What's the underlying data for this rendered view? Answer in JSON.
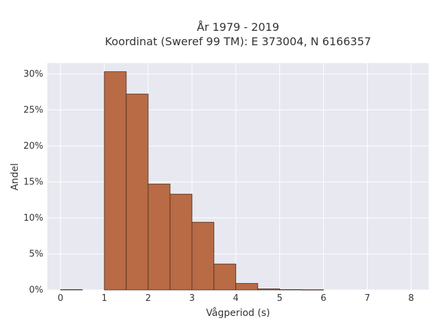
{
  "chart_data": {
    "type": "bar",
    "title_line1": "År 1979 - 2019",
    "title_line2": "Koordinat (Sweref 99 TM): E 373004, N 6166357",
    "xlabel": "Vågperiod (s)",
    "ylabel": "Andel",
    "xlim": [
      -0.3,
      8.4
    ],
    "ylim": [
      0,
      31.5
    ],
    "x_ticks": [
      0,
      1,
      2,
      3,
      4,
      5,
      6,
      7,
      8
    ],
    "y_ticks": [
      0,
      5,
      10,
      15,
      20,
      25,
      30
    ],
    "y_tick_labels": [
      "0%",
      "5%",
      "10%",
      "15%",
      "20%",
      "25%",
      "30%"
    ],
    "bin_width": 0.5,
    "bins": [
      {
        "start": 0.0,
        "value": 0.05
      },
      {
        "start": 1.0,
        "value": 30.3
      },
      {
        "start": 1.5,
        "value": 27.2
      },
      {
        "start": 2.0,
        "value": 14.7
      },
      {
        "start": 2.5,
        "value": 13.3
      },
      {
        "start": 3.0,
        "value": 9.4
      },
      {
        "start": 3.5,
        "value": 3.6
      },
      {
        "start": 4.0,
        "value": 0.9
      },
      {
        "start": 4.5,
        "value": 0.15
      },
      {
        "start": 5.0,
        "value": 0.05
      },
      {
        "start": 5.5,
        "value": 0.03
      }
    ],
    "grid": true,
    "colors": {
      "bar_fill": "#b86b45",
      "bar_stroke": "#4a2a1a",
      "plot_bg": "#e8e8f0",
      "grid": "#ffffff"
    }
  }
}
